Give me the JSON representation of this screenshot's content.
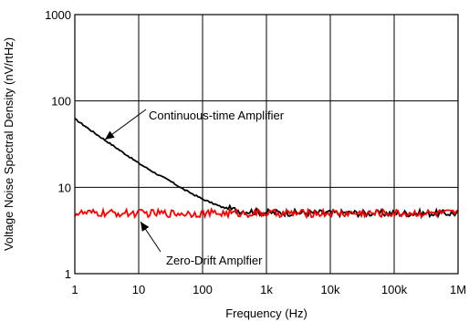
{
  "chart_data": {
    "type": "line",
    "title": "",
    "xlabel": "Frequency (Hz)",
    "ylabel": "Voltage Noise Spectral Density (nV/rtHz)",
    "x_scale": "log",
    "y_scale": "log",
    "xlim": [
      1,
      1000000
    ],
    "ylim": [
      1,
      1000
    ],
    "grid": true,
    "legend": "none",
    "x_tick_values": [
      1,
      10,
      100,
      1000,
      10000,
      100000,
      1000000
    ],
    "x_tick_labels": [
      "1",
      "10",
      "100",
      "1k",
      "10k",
      "100k",
      "1M"
    ],
    "y_tick_values": [
      1,
      10,
      100,
      1000
    ],
    "y_tick_labels": [
      "1",
      "10",
      "100",
      "1000"
    ],
    "colors": {
      "continuous": "#000000",
      "zero_drift": "#ff0000"
    },
    "series": [
      {
        "name": "Continuous-time Amplifier",
        "color": "#000000",
        "points": [
          [
            1,
            62
          ],
          [
            2,
            43
          ],
          [
            3,
            35
          ],
          [
            5,
            27
          ],
          [
            10,
            19
          ],
          [
            20,
            14
          ],
          [
            30,
            12
          ],
          [
            50,
            9.5
          ],
          [
            100,
            7.3
          ],
          [
            200,
            5.9
          ],
          [
            300,
            5.5
          ],
          [
            500,
            5.3
          ],
          [
            1000,
            5.1
          ],
          [
            10000,
            5.05
          ],
          [
            100000,
            5.0
          ],
          [
            1000000,
            5.0
          ]
        ]
      },
      {
        "name": "Zero-Drift Amplfier",
        "color": "#ff0000",
        "points": [
          [
            1,
            5.0
          ],
          [
            1000000,
            5.0
          ]
        ]
      }
    ],
    "annotations": [
      {
        "text": "Continuous-time Amplifier",
        "series": "Continuous-time Amplifier",
        "at_x": 2
      },
      {
        "text": "Zero-Drift Amplfier",
        "series": "Zero-Drift Amplfier",
        "at_x": 12
      }
    ]
  }
}
